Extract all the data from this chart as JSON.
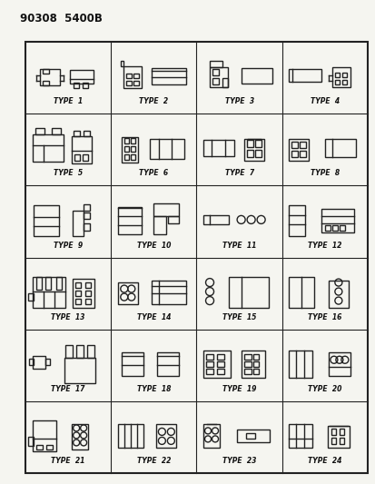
{
  "title": "90308  5400B",
  "background_color": "#f5f5f0",
  "grid_color": "#222222",
  "text_color": "#111111",
  "grid_rows": 6,
  "grid_cols": 4,
  "cell_labels": [
    "TYPE  1",
    "TYPE  2",
    "TYPE  3",
    "TYPE  4",
    "TYPE  5",
    "TYPE  6",
    "TYPE  7",
    "TYPE  8",
    "TYPE  9",
    "TYPE  10",
    "TYPE  11",
    "TYPE  12",
    "TYPE  13",
    "TYPE  14",
    "TYPE  15",
    "TYPE  16",
    "TYPE  17",
    "TYPE  18",
    "TYPE  19",
    "TYPE  20",
    "TYPE  21",
    "TYPE  22",
    "TYPE  23",
    "TYPE  24"
  ],
  "label_fontsize": 5.5,
  "title_fontsize": 8.5,
  "figsize": [
    4.14,
    5.33
  ],
  "dpi": 100
}
